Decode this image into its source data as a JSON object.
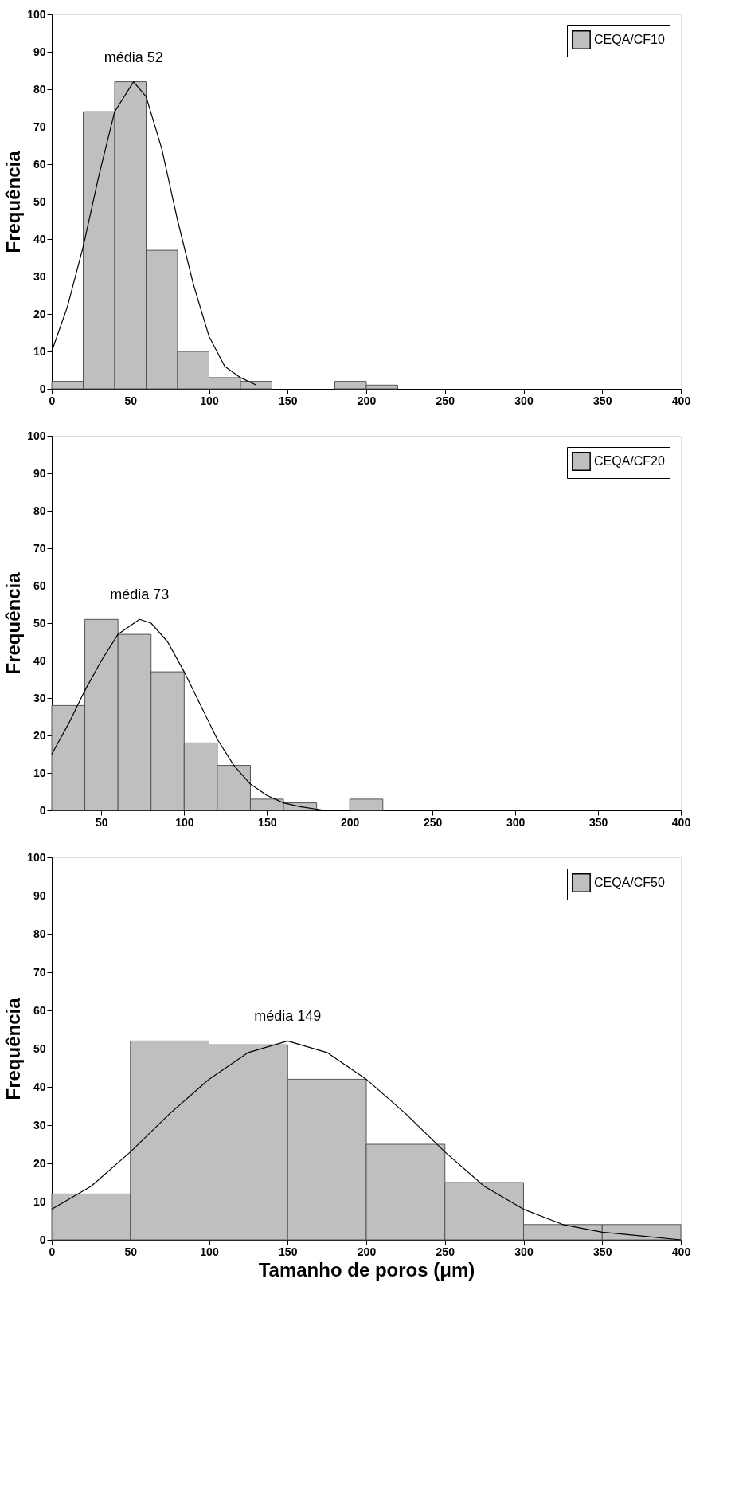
{
  "chart_data": [
    {
      "type": "histogram",
      "ylabel": "Frequência",
      "bins": [
        0,
        20,
        40,
        60,
        80,
        100,
        120,
        140,
        160,
        180,
        200,
        220
      ],
      "xlim": [
        0,
        400
      ],
      "xticks": [
        0,
        50,
        100,
        150,
        200,
        250,
        300,
        350,
        400
      ],
      "ylim": [
        0,
        100
      ],
      "yticks": [
        0,
        10,
        20,
        30,
        40,
        50,
        60,
        70,
        80,
        90,
        100
      ],
      "legend": "top right",
      "annotations": [
        "média 52"
      ],
      "series": [
        {
          "name": "CEQA/CF10",
          "color": "#bfbfbf",
          "values": [
            2,
            74,
            82,
            37,
            10,
            3,
            2,
            0,
            0,
            2,
            1
          ]
        },
        {
          "type": "line",
          "color": "#000000",
          "x": [
            0,
            10,
            20,
            30,
            40,
            52,
            60,
            70,
            80,
            90,
            100,
            110,
            120,
            130
          ],
          "values": [
            10,
            22,
            38,
            57,
            74,
            82,
            78,
            64,
            45,
            28,
            14,
            6,
            3,
            1
          ]
        }
      ]
    },
    {
      "type": "histogram",
      "ylabel": "Frequência",
      "bins": [
        20,
        40,
        60,
        80,
        100,
        120,
        140,
        160,
        180,
        200,
        220
      ],
      "xlim": [
        20,
        400
      ],
      "xticks": [
        50,
        100,
        150,
        200,
        250,
        300,
        350,
        400
      ],
      "ylim": [
        0,
        100
      ],
      "yticks": [
        0,
        10,
        20,
        30,
        40,
        50,
        60,
        70,
        80,
        90,
        100
      ],
      "legend": "top right",
      "annotations": [
        "média 73"
      ],
      "series": [
        {
          "name": "CEQA/CF20",
          "color": "#bfbfbf",
          "values": [
            28,
            51,
            47,
            37,
            18,
            12,
            3,
            2,
            0,
            3
          ]
        },
        {
          "type": "line",
          "color": "#000000",
          "x": [
            20,
            30,
            40,
            50,
            60,
            73,
            80,
            90,
            100,
            110,
            120,
            130,
            140,
            150,
            160,
            170,
            185
          ],
          "values": [
            15,
            23,
            32,
            40,
            47,
            51,
            50,
            45,
            37,
            28,
            19,
            12,
            7,
            4,
            2,
            1,
            0
          ]
        }
      ]
    },
    {
      "type": "histogram",
      "ylabel": "Frequência",
      "xlabel": "Tamanho de poros (μm)",
      "bins": [
        0,
        50,
        100,
        150,
        200,
        250,
        300,
        350,
        400
      ],
      "xlim": [
        0,
        400
      ],
      "xticks": [
        0,
        50,
        100,
        150,
        200,
        250,
        300,
        350,
        400
      ],
      "ylim": [
        0,
        100
      ],
      "yticks": [
        0,
        10,
        20,
        30,
        40,
        50,
        60,
        70,
        80,
        90,
        100
      ],
      "legend": "top right",
      "annotations": [
        "média 149"
      ],
      "series": [
        {
          "name": "CEQA/CF50",
          "color": "#bfbfbf",
          "values": [
            12,
            52,
            51,
            42,
            25,
            15,
            4,
            4
          ]
        },
        {
          "type": "line",
          "color": "#000000",
          "x": [
            0,
            25,
            50,
            75,
            100,
            125,
            150,
            175,
            200,
            225,
            250,
            275,
            300,
            325,
            350,
            375,
            400
          ],
          "values": [
            8,
            14,
            23,
            33,
            42,
            49,
            52,
            49,
            42,
            33,
            23,
            14,
            8,
            4,
            2,
            1,
            0
          ]
        }
      ]
    }
  ]
}
